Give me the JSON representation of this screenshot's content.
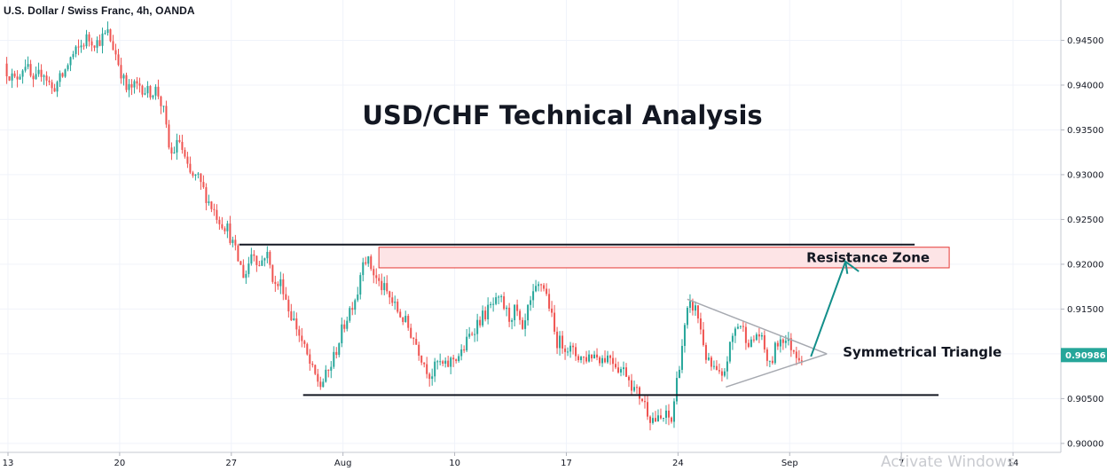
{
  "header": {
    "symbol_title": "U.S. Dollar / Swiss Franc, 4h, OANDA"
  },
  "watermark": "Activate Windows",
  "chart_data": {
    "type": "candlestick",
    "title": "USD/CHF Technical Analysis",
    "ylim": [
      0.899,
      0.9495
    ],
    "xlim": [
      "2020-07-12T12:00",
      "2020-09-17"
    ],
    "y_ticks": [
      "0.94500",
      "0.94000",
      "0.93500",
      "0.93000",
      "0.92500",
      "0.92000",
      "0.91500",
      "0.91000",
      "0.90500",
      "0.90000"
    ],
    "x_ticks": [
      {
        "label": "13",
        "date": "2020-07-13"
      },
      {
        "label": "20",
        "date": "2020-07-20"
      },
      {
        "label": "27",
        "date": "2020-07-27"
      },
      {
        "label": "Aug",
        "date": "2020-08-03"
      },
      {
        "label": "10",
        "date": "2020-08-10"
      },
      {
        "label": "17",
        "date": "2020-08-17"
      },
      {
        "label": "24",
        "date": "2020-08-24"
      },
      {
        "label": "Sep",
        "date": "2020-08-31"
      },
      {
        "label": "7",
        "date": "2020-09-07"
      },
      {
        "label": "14",
        "date": "2020-09-14"
      }
    ],
    "last_price": "0.90986",
    "colors": {
      "up": "#26a69a",
      "down": "#ef5350",
      "price_tag": "#26a69a",
      "resistance_fill": "#fde4e6",
      "resistance_border": "#e53935",
      "arrow": "#138f8a"
    },
    "price_path": [
      [
        "2020-07-12T20:00",
        0.942
      ],
      [
        "2020-07-13T12:00",
        0.9405
      ],
      [
        "2020-07-14T04:00",
        0.9425
      ],
      [
        "2020-07-14T16:00",
        0.94
      ],
      [
        "2020-07-15T06:00",
        0.9418
      ],
      [
        "2020-07-15T20:00",
        0.9395
      ],
      [
        "2020-07-16T12:00",
        0.941
      ],
      [
        "2020-07-17T00:00",
        0.943
      ],
      [
        "2020-07-17T12:00",
        0.944
      ],
      [
        "2020-07-18T00:00",
        0.9452
      ],
      [
        "2020-07-18T16:00",
        0.9448
      ],
      [
        "2020-07-19T08:00",
        0.9458
      ],
      [
        "2020-07-19T20:00",
        0.9435
      ],
      [
        "2020-07-20T12:00",
        0.9395
      ],
      [
        "2020-07-21T08:00",
        0.94
      ],
      [
        "2020-07-21T20:00",
        0.9392
      ],
      [
        "2020-07-22T10:00",
        0.9395
      ],
      [
        "2020-07-22T20:00",
        0.937
      ],
      [
        "2020-07-23T06:00",
        0.932
      ],
      [
        "2020-07-23T20:00",
        0.9338
      ],
      [
        "2020-07-24T10:00",
        0.93
      ],
      [
        "2020-07-25T00:00",
        0.9295
      ],
      [
        "2020-07-25T16:00",
        0.927
      ],
      [
        "2020-07-26T08:00",
        0.925
      ],
      [
        "2020-07-26T20:00",
        0.924
      ],
      [
        "2020-07-27T12:00",
        0.9205
      ],
      [
        "2020-07-27T22:00",
        0.9185
      ],
      [
        "2020-07-28T10:00",
        0.9218
      ],
      [
        "2020-07-28T20:00",
        0.9198
      ],
      [
        "2020-07-29T06:00",
        0.9215
      ],
      [
        "2020-07-29T20:00",
        0.9175
      ],
      [
        "2020-07-30T06:00",
        0.918
      ],
      [
        "2020-07-30T16:00",
        0.915
      ],
      [
        "2020-07-31T04:00",
        0.913
      ],
      [
        "2020-07-31T16:00",
        0.9105
      ],
      [
        "2020-08-01T04:00",
        0.908
      ],
      [
        "2020-08-01T16:00",
        0.9065
      ],
      [
        "2020-08-02T04:00",
        0.908
      ],
      [
        "2020-08-02T14:00",
        0.91
      ],
      [
        "2020-08-03T00:00",
        0.9125
      ],
      [
        "2020-08-03T12:00",
        0.915
      ],
      [
        "2020-08-04T00:00",
        0.917
      ],
      [
        "2020-08-04T08:00",
        0.921
      ],
      [
        "2020-08-04T18:00",
        0.92
      ],
      [
        "2020-08-05T06:00",
        0.918
      ],
      [
        "2020-08-05T18:00",
        0.917
      ],
      [
        "2020-08-06T10:00",
        0.915
      ],
      [
        "2020-08-07T00:00",
        0.9135
      ],
      [
        "2020-08-07T14:00",
        0.9115
      ],
      [
        "2020-08-08T04:00",
        0.909
      ],
      [
        "2020-08-08T14:00",
        0.9075
      ],
      [
        "2020-08-09T00:00",
        0.909
      ],
      [
        "2020-08-09T12:00",
        0.9085
      ],
      [
        "2020-08-10T00:00",
        0.9095
      ],
      [
        "2020-08-10T12:00",
        0.91
      ],
      [
        "2020-08-11T00:00",
        0.912
      ],
      [
        "2020-08-11T12:00",
        0.9135
      ],
      [
        "2020-08-12T00:00",
        0.9145
      ],
      [
        "2020-08-12T12:00",
        0.9155
      ],
      [
        "2020-08-13T00:00",
        0.9158
      ],
      [
        "2020-08-13T12:00",
        0.914
      ],
      [
        "2020-08-13T22:00",
        0.915
      ],
      [
        "2020-08-14T08:00",
        0.912
      ],
      [
        "2020-08-14T16:00",
        0.9148
      ],
      [
        "2020-08-15T04:00",
        0.917
      ],
      [
        "2020-08-15T14:00",
        0.918
      ],
      [
        "2020-08-16T00:00",
        0.9155
      ],
      [
        "2020-08-16T10:00",
        0.9115
      ],
      [
        "2020-08-17T00:00",
        0.911
      ],
      [
        "2020-08-17T14:00",
        0.91
      ],
      [
        "2020-08-18T04:00",
        0.9095
      ],
      [
        "2020-08-18T18:00",
        0.91
      ],
      [
        "2020-08-19T08:00",
        0.9095
      ],
      [
        "2020-08-19T20:00",
        0.9098
      ],
      [
        "2020-08-20T08:00",
        0.9085
      ],
      [
        "2020-08-20T20:00",
        0.908
      ],
      [
        "2020-08-21T08:00",
        0.906
      ],
      [
        "2020-08-21T20:00",
        0.905
      ],
      [
        "2020-08-22T08:00",
        0.903
      ],
      [
        "2020-08-22T20:00",
        0.9025
      ],
      [
        "2020-08-23T08:00",
        0.903
      ],
      [
        "2020-08-23T16:00",
        0.9025
      ],
      [
        "2020-08-24T00:00",
        0.907
      ],
      [
        "2020-08-24T08:00",
        0.911
      ],
      [
        "2020-08-24T16:00",
        0.9145
      ],
      [
        "2020-08-24T22:00",
        0.9155
      ],
      [
        "2020-08-25T06:00",
        0.9148
      ],
      [
        "2020-08-25T14:00",
        0.912
      ],
      [
        "2020-08-25T22:00",
        0.909
      ],
      [
        "2020-08-26T10:00",
        0.908
      ],
      [
        "2020-08-26T20:00",
        0.907
      ],
      [
        "2020-08-27T04:00",
        0.9095
      ],
      [
        "2020-08-27T14:00",
        0.9125
      ],
      [
        "2020-08-27T22:00",
        0.9135
      ],
      [
        "2020-08-28T08:00",
        0.912
      ],
      [
        "2020-08-28T16:00",
        0.911
      ],
      [
        "2020-08-29T02:00",
        0.9125
      ],
      [
        "2020-08-29T12:00",
        0.9105
      ],
      [
        "2020-08-29T20:00",
        0.9085
      ],
      [
        "2020-08-30T06:00",
        0.911
      ],
      [
        "2020-08-30T14:00",
        0.912
      ],
      [
        "2020-08-31T00:00",
        0.9112
      ],
      [
        "2020-08-31T08:00",
        0.9105
      ],
      [
        "2020-08-31T16:00",
        0.9098
      ]
    ],
    "annotations": {
      "resistance_line": {
        "from": [
          "2020-07-27T12:00",
          0.9222
        ],
        "to": [
          "2020-09-07T20:00",
          0.9222
        ]
      },
      "support_line": {
        "from": [
          "2020-07-31T12:00",
          0.9054
        ],
        "to": [
          "2020-09-09T08:00",
          0.9054
        ]
      },
      "resistance_zone": {
        "label": "Resistance Zone",
        "from": "2020-08-05T06:00",
        "to": "2020-09-10T00:00",
        "y_top": 0.9219,
        "y_bottom": 0.9196
      },
      "triangle": {
        "label": "Symmetrical Triangle",
        "upper": [
          [
            "2020-08-24T14:00",
            0.9161
          ],
          [
            "2020-09-02T08:00",
            0.91
          ]
        ],
        "lower": [
          [
            "2020-08-27T00:00",
            0.9063
          ],
          [
            "2020-09-02T08:00",
            0.91
          ]
        ]
      },
      "arrow": {
        "from": [
          "2020-09-01T08:00",
          0.9097
        ],
        "to": [
          "2020-09-03T12:00",
          0.9203
        ]
      },
      "arrow_pointer_end": [
        "2020-09-04T08:00",
        0.9192
      ]
    }
  }
}
